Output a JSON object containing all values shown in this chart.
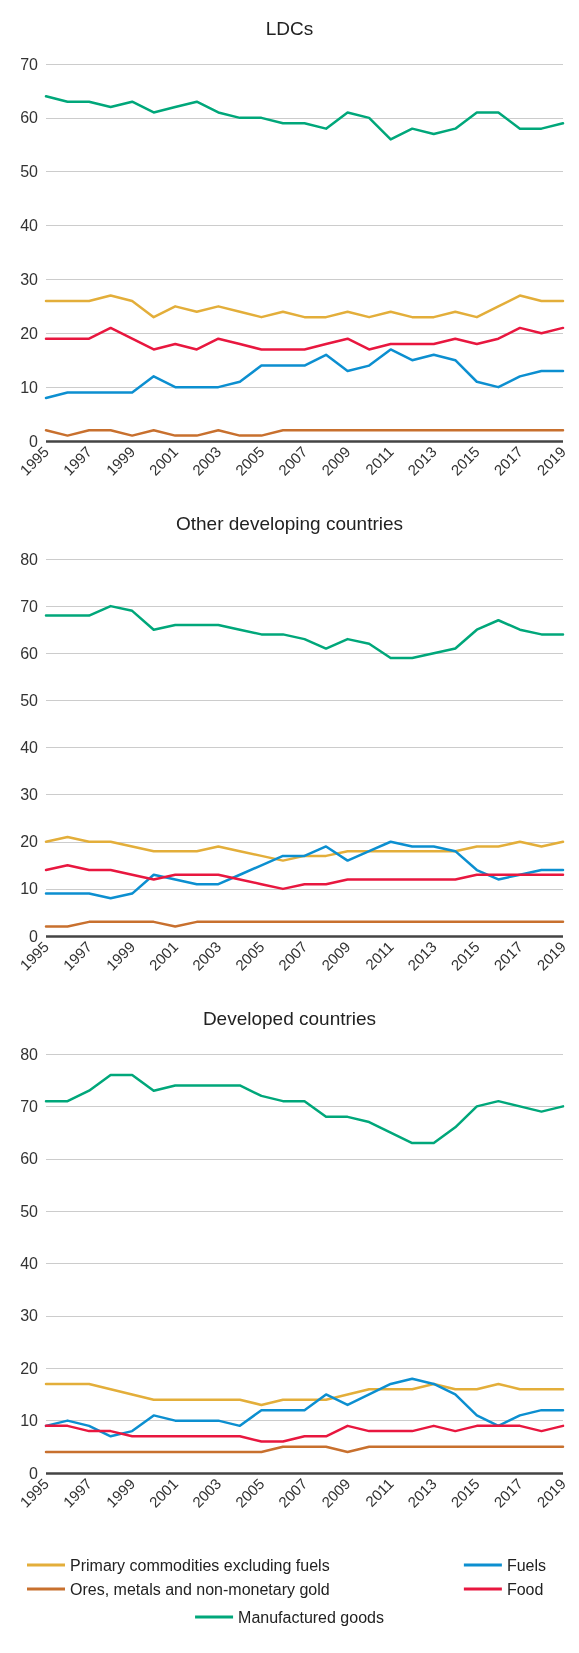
{
  "chart_data": [
    {
      "type": "line",
      "title": "LDCs",
      "x": [
        1995,
        1996,
        1997,
        1998,
        1999,
        2000,
        2001,
        2002,
        2003,
        2004,
        2005,
        2006,
        2007,
        2008,
        2009,
        2010,
        2011,
        2012,
        2013,
        2014,
        2015,
        2016,
        2017,
        2018,
        2019
      ],
      "xlim": [
        1995,
        2019
      ],
      "xticks": [
        1995,
        1997,
        1999,
        2001,
        2003,
        2005,
        2007,
        2009,
        2011,
        2013,
        2015,
        2017,
        2019
      ],
      "ylim": [
        0,
        70
      ],
      "yticks": [
        0,
        10,
        20,
        30,
        40,
        50,
        60,
        70
      ],
      "grid": "y",
      "legend": false,
      "marker": "none",
      "line_style": "solid",
      "series": [
        {
          "color": "#e3ae3a",
          "values": [
            26,
            26,
            26,
            27,
            26,
            23,
            25,
            24,
            25,
            24,
            23,
            24,
            23,
            23,
            24,
            23,
            24,
            23,
            23,
            24,
            23,
            25,
            27,
            26,
            26
          ]
        },
        {
          "color": "#c8702e",
          "values": [
            2,
            1,
            2,
            2,
            1,
            2,
            1,
            1,
            2,
            1,
            1,
            2,
            2,
            2,
            2,
            2,
            2,
            2,
            2,
            2,
            2,
            2,
            2,
            2,
            2
          ]
        },
        {
          "color": "#0c8fd0",
          "values": [
            8,
            9,
            9,
            9,
            9,
            12,
            10,
            10,
            10,
            11,
            14,
            14,
            14,
            16,
            13,
            14,
            17,
            15,
            16,
            15,
            11,
            10,
            12,
            13,
            13
          ]
        },
        {
          "color": "#e8173f",
          "values": [
            19,
            19,
            19,
            21,
            19,
            17,
            18,
            17,
            19,
            18,
            17,
            17,
            17,
            18,
            19,
            17,
            18,
            18,
            18,
            19,
            18,
            19,
            21,
            20,
            21
          ]
        },
        {
          "color": "#00a77a",
          "values": [
            64,
            63,
            63,
            62,
            63,
            61,
            62,
            63,
            61,
            60,
            60,
            59,
            59,
            58,
            61,
            60,
            56,
            58,
            57,
            58,
            61,
            61,
            58,
            58,
            59
          ]
        }
      ]
    },
    {
      "type": "line",
      "title": "Other developing countries",
      "x": [
        1995,
        1996,
        1997,
        1998,
        1999,
        2000,
        2001,
        2002,
        2003,
        2004,
        2005,
        2006,
        2007,
        2008,
        2009,
        2010,
        2011,
        2012,
        2013,
        2014,
        2015,
        2016,
        2017,
        2018,
        2019
      ],
      "xlim": [
        1995,
        2019
      ],
      "xticks": [
        1995,
        1997,
        1999,
        2001,
        2003,
        2005,
        2007,
        2009,
        2011,
        2013,
        2015,
        2017,
        2019
      ],
      "ylim": [
        0,
        80
      ],
      "yticks": [
        0,
        10,
        20,
        30,
        40,
        50,
        60,
        70,
        80
      ],
      "grid": "y",
      "legend": false,
      "marker": "none",
      "line_style": "solid",
      "series": [
        {
          "color": "#e3ae3a",
          "values": [
            20,
            21,
            20,
            20,
            19,
            18,
            18,
            18,
            19,
            18,
            17,
            16,
            17,
            17,
            18,
            18,
            18,
            18,
            18,
            18,
            19,
            19,
            20,
            19,
            20
          ]
        },
        {
          "color": "#c8702e",
          "values": [
            2,
            2,
            3,
            3,
            3,
            3,
            2,
            3,
            3,
            3,
            3,
            3,
            3,
            3,
            3,
            3,
            3,
            3,
            3,
            3,
            3,
            3,
            3,
            3,
            3
          ]
        },
        {
          "color": "#0c8fd0",
          "values": [
            9,
            9,
            9,
            8,
            9,
            13,
            12,
            11,
            11,
            13,
            15,
            17,
            17,
            19,
            16,
            18,
            20,
            19,
            19,
            18,
            14,
            12,
            13,
            14,
            14
          ]
        },
        {
          "color": "#e8173f",
          "values": [
            14,
            15,
            14,
            14,
            13,
            12,
            13,
            13,
            13,
            12,
            11,
            10,
            11,
            11,
            12,
            12,
            12,
            12,
            12,
            12,
            13,
            13,
            13,
            13,
            13
          ]
        },
        {
          "color": "#00a77a",
          "values": [
            68,
            68,
            68,
            70,
            69,
            65,
            66,
            66,
            66,
            65,
            64,
            64,
            63,
            61,
            63,
            62,
            59,
            59,
            60,
            61,
            65,
            67,
            65,
            64,
            64
          ]
        }
      ]
    },
    {
      "type": "line",
      "title": "Developed countries",
      "x": [
        1995,
        1996,
        1997,
        1998,
        1999,
        2000,
        2001,
        2002,
        2003,
        2004,
        2005,
        2006,
        2007,
        2008,
        2009,
        2010,
        2011,
        2012,
        2013,
        2014,
        2015,
        2016,
        2017,
        2018,
        2019
      ],
      "xlim": [
        1995,
        2019
      ],
      "xticks": [
        1995,
        1997,
        1999,
        2001,
        2003,
        2005,
        2007,
        2009,
        2011,
        2013,
        2015,
        2017,
        2019
      ],
      "ylim": [
        0,
        80
      ],
      "yticks": [
        0,
        10,
        20,
        30,
        40,
        50,
        60,
        70,
        80
      ],
      "grid": "y",
      "legend": "bottom",
      "marker": "none",
      "line_style": "solid",
      "series": [
        {
          "name": "Primary commodities excluding fuels",
          "color": "#e3ae3a",
          "values": [
            17,
            17,
            17,
            16,
            15,
            14,
            14,
            14,
            14,
            14,
            13,
            14,
            14,
            14,
            15,
            16,
            16,
            16,
            17,
            16,
            16,
            17,
            16,
            16,
            16
          ]
        },
        {
          "name": "Ores, metals and non-monetary gold",
          "color": "#c8702e",
          "values": [
            4,
            4,
            4,
            4,
            4,
            4,
            4,
            4,
            4,
            4,
            4,
            5,
            5,
            5,
            4,
            5,
            5,
            5,
            5,
            5,
            5,
            5,
            5,
            5,
            5
          ]
        },
        {
          "name": "Fuels",
          "color": "#0c8fd0",
          "values": [
            9,
            10,
            9,
            7,
            8,
            11,
            10,
            10,
            10,
            9,
            12,
            12,
            12,
            15,
            13,
            15,
            17,
            18,
            17,
            15,
            11,
            9,
            11,
            12,
            12
          ]
        },
        {
          "name": "Food",
          "color": "#e8173f",
          "values": [
            9,
            9,
            8,
            8,
            7,
            7,
            7,
            7,
            7,
            7,
            6,
            6,
            7,
            7,
            9,
            8,
            8,
            8,
            9,
            8,
            9,
            9,
            9,
            8,
            9
          ]
        },
        {
          "name": "Manufactured goods",
          "color": "#00a77a",
          "values": [
            71,
            71,
            73,
            76,
            76,
            73,
            74,
            74,
            74,
            74,
            72,
            71,
            71,
            68,
            68,
            67,
            65,
            63,
            63,
            66,
            70,
            71,
            70,
            69,
            70
          ]
        }
      ]
    }
  ]
}
